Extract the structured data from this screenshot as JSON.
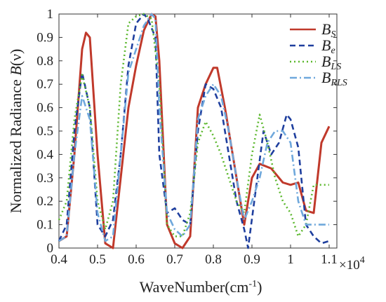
{
  "chart_data": {
    "type": "line",
    "xlabel": "WaveNumber(cm",
    "xlabel_sup": "-1",
    "xlabel_end": ")",
    "ylabel": "Normalized Radiance ",
    "ylabel_var": "B",
    "ylabel_arg": "(ν)",
    "x_multiplier": "×10",
    "x_multiplier_exp": "4",
    "xlim": [
      0.4,
      1.12
    ],
    "ylim": [
      0,
      1
    ],
    "xticks": [
      "0.4",
      "0.5",
      "0.6",
      "0.7",
      "0.8",
      "0.9",
      "1",
      "1.1"
    ],
    "yticks": [
      "0",
      "0.1",
      "0.2",
      "0.3",
      "0.4",
      "0.5",
      "0.6",
      "0.7",
      "0.8",
      "0.9",
      "1"
    ],
    "legend_position": "top-right",
    "series": [
      {
        "name": "B",
        "sub": "S",
        "color": "#c0392b",
        "dash": "solid",
        "points": [
          [
            0.4,
            0.03
          ],
          [
            0.42,
            0.05
          ],
          [
            0.44,
            0.4
          ],
          [
            0.46,
            0.85
          ],
          [
            0.47,
            0.92
          ],
          [
            0.48,
            0.9
          ],
          [
            0.5,
            0.4
          ],
          [
            0.52,
            0.02
          ],
          [
            0.54,
            0.0
          ],
          [
            0.56,
            0.3
          ],
          [
            0.58,
            0.6
          ],
          [
            0.6,
            0.78
          ],
          [
            0.62,
            0.93
          ],
          [
            0.64,
            1.0
          ],
          [
            0.65,
            0.99
          ],
          [
            0.66,
            0.8
          ],
          [
            0.68,
            0.1
          ],
          [
            0.7,
            0.02
          ],
          [
            0.72,
            0.0
          ],
          [
            0.74,
            0.05
          ],
          [
            0.76,
            0.6
          ],
          [
            0.78,
            0.7
          ],
          [
            0.8,
            0.77
          ],
          [
            0.81,
            0.77
          ],
          [
            0.83,
            0.6
          ],
          [
            0.86,
            0.3
          ],
          [
            0.88,
            0.1
          ],
          [
            0.9,
            0.3
          ],
          [
            0.92,
            0.36
          ],
          [
            0.95,
            0.34
          ],
          [
            0.98,
            0.28
          ],
          [
            1.0,
            0.27
          ],
          [
            1.02,
            0.28
          ],
          [
            1.04,
            0.16
          ],
          [
            1.06,
            0.15
          ],
          [
            1.08,
            0.45
          ],
          [
            1.1,
            0.52
          ]
        ]
      },
      {
        "name": "B",
        "sub": "e",
        "color": "#1f3f9e",
        "dash": "8,5",
        "points": [
          [
            0.4,
            0.03
          ],
          [
            0.42,
            0.1
          ],
          [
            0.44,
            0.5
          ],
          [
            0.46,
            0.75
          ],
          [
            0.48,
            0.6
          ],
          [
            0.5,
            0.1
          ],
          [
            0.52,
            0.05
          ],
          [
            0.54,
            0.12
          ],
          [
            0.56,
            0.4
          ],
          [
            0.58,
            0.78
          ],
          [
            0.6,
            0.96
          ],
          [
            0.62,
            1.0
          ],
          [
            0.63,
            0.98
          ],
          [
            0.65,
            0.9
          ],
          [
            0.66,
            0.4
          ],
          [
            0.68,
            0.15
          ],
          [
            0.7,
            0.17
          ],
          [
            0.72,
            0.12
          ],
          [
            0.74,
            0.1
          ],
          [
            0.76,
            0.5
          ],
          [
            0.78,
            0.7
          ],
          [
            0.8,
            0.68
          ],
          [
            0.82,
            0.6
          ],
          [
            0.84,
            0.4
          ],
          [
            0.86,
            0.2
          ],
          [
            0.88,
            0.08
          ],
          [
            0.89,
            0.0
          ],
          [
            0.91,
            0.25
          ],
          [
            0.93,
            0.5
          ],
          [
            0.95,
            0.4
          ],
          [
            0.97,
            0.45
          ],
          [
            0.99,
            0.57
          ],
          [
            1.0,
            0.55
          ],
          [
            1.02,
            0.43
          ],
          [
            1.04,
            0.1
          ],
          [
            1.06,
            0.05
          ],
          [
            1.08,
            0.02
          ],
          [
            1.1,
            0.03
          ]
        ]
      },
      {
        "name": "B",
        "sub": "LS",
        "color": "#5cb82e",
        "dash": "2,4",
        "points": [
          [
            0.4,
            0.12
          ],
          [
            0.42,
            0.2
          ],
          [
            0.44,
            0.55
          ],
          [
            0.46,
            0.74
          ],
          [
            0.48,
            0.6
          ],
          [
            0.5,
            0.2
          ],
          [
            0.52,
            0.08
          ],
          [
            0.54,
            0.2
          ],
          [
            0.56,
            0.7
          ],
          [
            0.58,
            0.96
          ],
          [
            0.6,
            0.99
          ],
          [
            0.62,
            1.0
          ],
          [
            0.64,
            0.98
          ],
          [
            0.66,
            0.7
          ],
          [
            0.68,
            0.1
          ],
          [
            0.7,
            0.05
          ],
          [
            0.72,
            0.05
          ],
          [
            0.74,
            0.15
          ],
          [
            0.76,
            0.45
          ],
          [
            0.78,
            0.54
          ],
          [
            0.8,
            0.48
          ],
          [
            0.82,
            0.4
          ],
          [
            0.84,
            0.3
          ],
          [
            0.86,
            0.2
          ],
          [
            0.88,
            0.15
          ],
          [
            0.9,
            0.4
          ],
          [
            0.92,
            0.57
          ],
          [
            0.94,
            0.45
          ],
          [
            0.96,
            0.3
          ],
          [
            0.98,
            0.2
          ],
          [
            1.0,
            0.15
          ],
          [
            1.02,
            0.05
          ],
          [
            1.04,
            0.1
          ],
          [
            1.06,
            0.27
          ],
          [
            1.1,
            0.27
          ]
        ]
      },
      {
        "name": "B",
        "sub": "RLS",
        "color": "#6fa8dc",
        "dash": "10,4,2,4",
        "points": [
          [
            0.4,
            0.03
          ],
          [
            0.42,
            0.05
          ],
          [
            0.44,
            0.4
          ],
          [
            0.46,
            0.65
          ],
          [
            0.48,
            0.55
          ],
          [
            0.5,
            0.15
          ],
          [
            0.52,
            0.03
          ],
          [
            0.54,
            0.05
          ],
          [
            0.56,
            0.4
          ],
          [
            0.58,
            0.75
          ],
          [
            0.6,
            0.85
          ],
          [
            0.62,
            0.95
          ],
          [
            0.64,
            1.0
          ],
          [
            0.65,
            0.98
          ],
          [
            0.66,
            0.6
          ],
          [
            0.68,
            0.15
          ],
          [
            0.7,
            0.08
          ],
          [
            0.72,
            0.05
          ],
          [
            0.74,
            0.1
          ],
          [
            0.76,
            0.55
          ],
          [
            0.78,
            0.65
          ],
          [
            0.8,
            0.7
          ],
          [
            0.82,
            0.65
          ],
          [
            0.84,
            0.5
          ],
          [
            0.86,
            0.3
          ],
          [
            0.88,
            0.12
          ],
          [
            0.9,
            0.2
          ],
          [
            0.92,
            0.3
          ],
          [
            0.94,
            0.45
          ],
          [
            0.96,
            0.5
          ],
          [
            0.98,
            0.5
          ],
          [
            1.0,
            0.45
          ],
          [
            1.02,
            0.2
          ],
          [
            1.04,
            0.1
          ],
          [
            1.06,
            0.1
          ],
          [
            1.08,
            0.1
          ],
          [
            1.1,
            0.1
          ]
        ]
      }
    ]
  }
}
